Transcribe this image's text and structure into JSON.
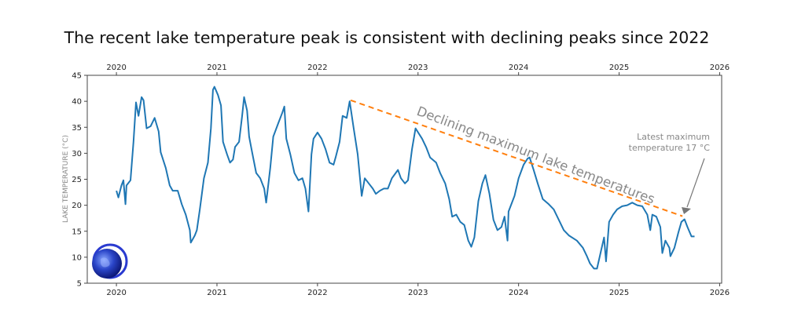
{
  "chart_data": {
    "type": "line",
    "title": "The recent lake temperature peak is consistent with declining peaks since 2022",
    "xlabel": "",
    "ylabel": "LAKE TEMPERATURE (°C)",
    "xlim": [
      2019.71,
      2026.02
    ],
    "ylim": [
      5,
      45
    ],
    "x_ticks": [
      "2020",
      "2021",
      "2022",
      "2023",
      "2024",
      "2025",
      "2026"
    ],
    "x_ticks_top": [
      "2020",
      "2021",
      "2022",
      "2023",
      "2024",
      "2025",
      "2026"
    ],
    "y_ticks": [
      "5",
      "10",
      "15",
      "20",
      "25",
      "30",
      "35",
      "40",
      "45"
    ],
    "grid": false,
    "series": [
      {
        "color": "#1f77b4",
        "x": [
          2020.0,
          2020.02,
          2020.05,
          2020.07,
          2020.09,
          2020.1,
          2020.14,
          2020.17,
          2020.195,
          2020.22,
          2020.25,
          2020.27,
          2020.3,
          2020.34,
          2020.38,
          2020.42,
          2020.44,
          2020.49,
          2020.53,
          2020.56,
          2020.61,
          2020.65,
          2020.69,
          2020.73,
          2020.74,
          2020.78,
          2020.8,
          2020.83,
          2020.87,
          2020.91,
          2020.94,
          2020.96,
          2020.975,
          2021.01,
          2021.04,
          2021.06,
          2021.1,
          2021.13,
          2021.16,
          2021.18,
          2021.22,
          2021.25,
          2021.27,
          2021.3,
          2021.32,
          2021.35,
          2021.39,
          2021.43,
          2021.47,
          2021.49,
          2021.53,
          2021.56,
          2021.61,
          2021.65,
          2021.67,
          2021.69,
          2021.73,
          2021.77,
          2021.81,
          2021.85,
          2021.88,
          2021.91,
          2021.94,
          2021.96,
          2022.0,
          2022.04,
          2022.08,
          2022.12,
          2022.16,
          2022.18,
          2022.22,
          2022.25,
          2022.29,
          2022.32,
          2022.36,
          2022.4,
          2022.44,
          2022.47,
          2022.51,
          2022.55,
          2022.58,
          2022.62,
          2022.66,
          2022.7,
          2022.74,
          2022.8,
          2022.83,
          2022.87,
          2022.9,
          2022.94,
          2022.975,
          2023.04,
          2023.08,
          2023.12,
          2023.18,
          2023.22,
          2023.27,
          2023.31,
          2023.34,
          2023.38,
          2023.42,
          2023.46,
          2023.5,
          2023.53,
          2023.56,
          2023.6,
          2023.64,
          2023.67,
          2023.71,
          2023.75,
          2023.79,
          2023.83,
          2023.86,
          2023.89,
          2023.9,
          2023.96,
          2024.0,
          2024.05,
          2024.09,
          2024.11,
          2024.15,
          2024.19,
          2024.24,
          2024.3,
          2024.35,
          2024.4,
          2024.45,
          2024.5,
          2024.58,
          2024.64,
          2024.68,
          2024.71,
          2024.75,
          2024.78,
          2024.82,
          2024.85,
          2024.87,
          2024.9,
          2024.94,
          2024.98,
          2025.03,
          2025.08,
          2025.13,
          2025.18,
          2025.23,
          2025.28,
          2025.31,
          2025.33,
          2025.37,
          2025.41,
          2025.43,
          2025.46,
          2025.5,
          2025.51,
          2025.55,
          2025.59,
          2025.62,
          2025.65,
          2025.68,
          2025.72,
          2025.75
        ],
        "y": [
          22.8,
          21.5,
          23.8,
          24.8,
          20.2,
          23.8,
          24.8,
          32.2,
          39.8,
          37.2,
          40.8,
          40.2,
          34.8,
          35.2,
          36.8,
          34.2,
          30.2,
          27.2,
          23.8,
          22.8,
          22.8,
          20.2,
          18.2,
          15.2,
          12.8,
          14.2,
          15.2,
          19.2,
          25.2,
          28.2,
          34.8,
          42.2,
          42.8,
          41.2,
          39.2,
          32.2,
          29.8,
          28.2,
          28.8,
          31.2,
          32.2,
          37.2,
          40.8,
          38.2,
          33.2,
          30.2,
          26.2,
          25.2,
          23.2,
          20.5,
          27.2,
          33.2,
          35.8,
          37.8,
          39.0,
          32.8,
          29.8,
          26.2,
          24.8,
          25.2,
          23.2,
          18.8,
          29.8,
          32.8,
          34.0,
          32.8,
          30.8,
          28.2,
          27.8,
          29.2,
          32.2,
          37.2,
          36.8,
          40.0,
          34.8,
          29.8,
          21.8,
          25.2,
          24.2,
          23.2,
          22.2,
          22.8,
          23.2,
          23.2,
          25.2,
          26.8,
          25.2,
          24.2,
          24.8,
          30.8,
          34.8,
          32.8,
          31.2,
          29.2,
          28.2,
          26.2,
          24.2,
          21.2,
          17.8,
          18.2,
          16.8,
          16.2,
          13.2,
          12.0,
          13.8,
          20.8,
          24.2,
          25.8,
          22.2,
          17.2,
          15.2,
          15.8,
          17.8,
          13.2,
          18.8,
          21.8,
          25.2,
          27.8,
          29.0,
          29.2,
          26.8,
          24.2,
          21.2,
          20.2,
          19.2,
          17.2,
          15.2,
          14.2,
          13.2,
          11.8,
          10.2,
          8.8,
          7.8,
          7.8,
          11.2,
          13.8,
          9.2,
          16.8,
          18.2,
          19.2,
          19.8,
          20.0,
          20.5,
          20.0,
          19.8,
          18.2,
          15.2,
          18.2,
          17.8,
          15.8,
          10.8,
          13.2,
          11.8,
          10.2,
          11.8,
          14.8,
          16.8,
          17.3,
          15.8,
          14.0,
          14.0
        ]
      }
    ],
    "trend_line": {
      "color": "#ff7f0e",
      "style": "dashed",
      "x": [
        2022.33,
        2025.63
      ],
      "y": [
        40.2,
        17.9
      ]
    },
    "annotations": [
      {
        "text": "Declining maximum lake temperatures"
      },
      {
        "line1": "Latest maximum",
        "line2": "temperature 17 °C",
        "arrow_to": [
          2025.65,
          17.3
        ]
      }
    ],
    "logo": "blue-globe-logo"
  }
}
